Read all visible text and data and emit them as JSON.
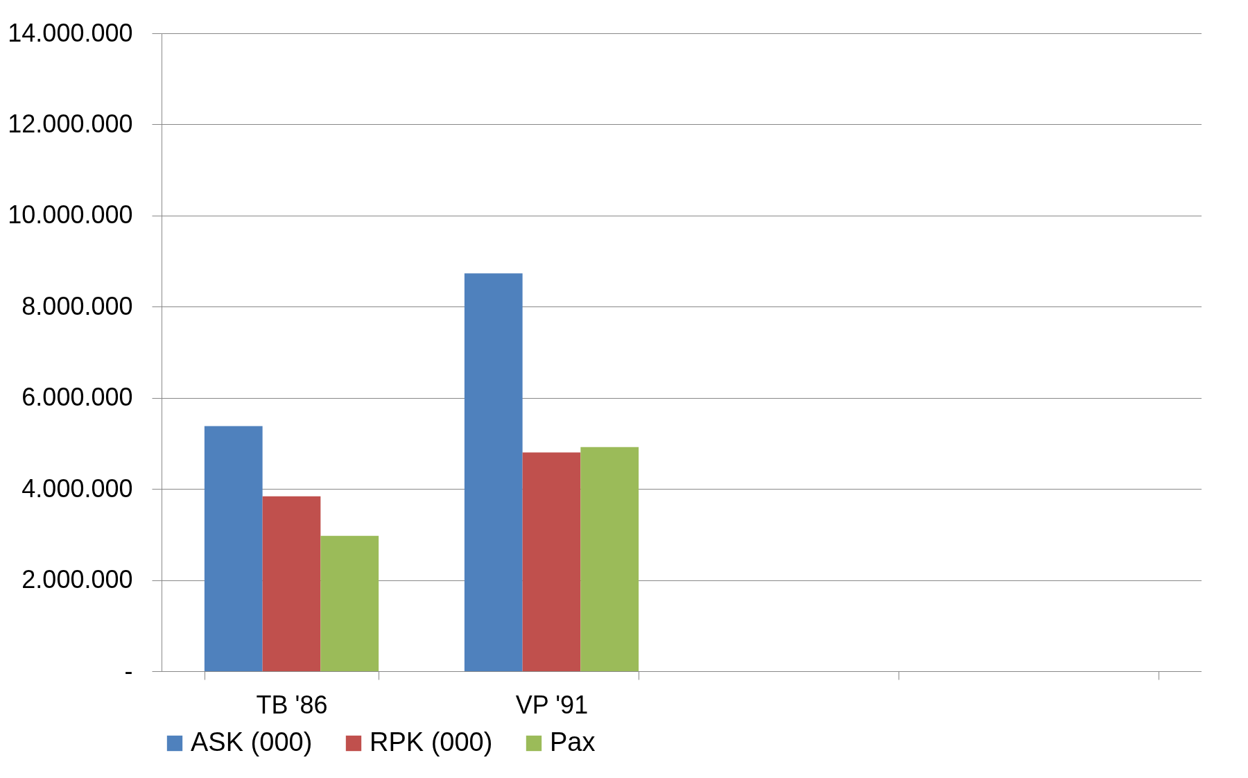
{
  "chart_data": {
    "type": "bar",
    "categories": [
      "TB '86",
      "VP '91",
      null,
      null
    ],
    "series": [
      {
        "name": "ASK (000)",
        "color": "#4f81bd",
        "values": [
          5380000,
          8730000,
          null,
          null
        ]
      },
      {
        "name": "RPK (000)",
        "color": "#c0504d",
        "values": [
          3840000,
          4800000,
          null,
          null
        ]
      },
      {
        "name": "Pax",
        "color": "#9bbb59",
        "values": [
          2970000,
          4920000,
          null,
          null
        ]
      }
    ],
    "ylim": [
      0,
      14000000
    ],
    "yticks": [
      {
        "value": 0,
        "label": "-"
      },
      {
        "value": 2000000,
        "label": "2.000.000"
      },
      {
        "value": 4000000,
        "label": "4.000.000"
      },
      {
        "value": 6000000,
        "label": "6.000.000"
      },
      {
        "value": 8000000,
        "label": "8.000.000"
      },
      {
        "value": 10000000,
        "label": "10.000.000"
      },
      {
        "value": 12000000,
        "label": "12.000.000"
      },
      {
        "value": 14000000,
        "label": "14.000.000"
      }
    ],
    "grid": "y",
    "legend": "bottom"
  }
}
